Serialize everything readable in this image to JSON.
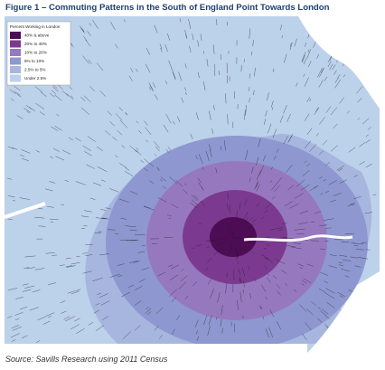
{
  "title": "Figure 1 – Commuting Patterns in the South of England Point Towards London",
  "legend": {
    "title": "Percent Working in London",
    "items": [
      {
        "label": "40% & above",
        "color": "#4e0c55"
      },
      {
        "label": "20% to 40%",
        "color": "#7b3a8f"
      },
      {
        "label": "10% to 20%",
        "color": "#9678bf"
      },
      {
        "label": "5% to 10%",
        "color": "#8e97cf"
      },
      {
        "label": "2.5% to 5%",
        "color": "#a7b6de"
      },
      {
        "label": "Under 2.5%",
        "color": "#bcd1ea"
      }
    ]
  },
  "source": "Source: Savills Research using 2011 Census"
}
